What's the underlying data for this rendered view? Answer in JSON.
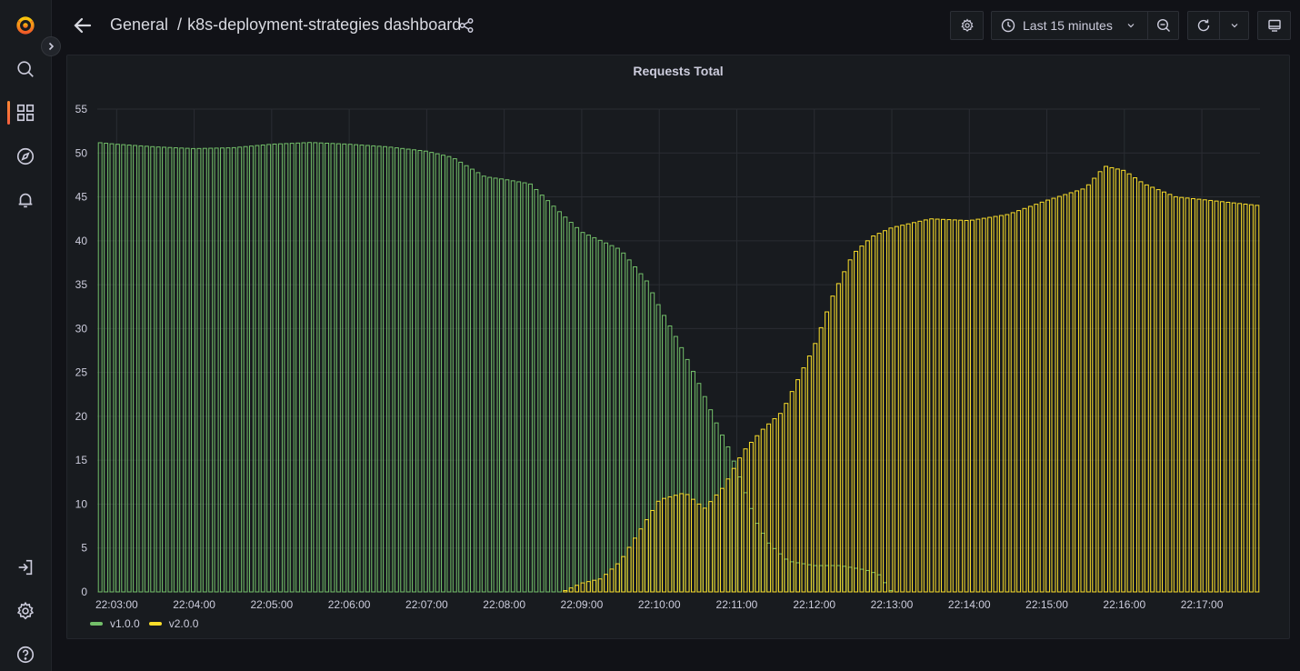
{
  "breadcrumb": {
    "folder": "General",
    "separator": "/",
    "dashboard": "k8s-deployment-strategies dashboard"
  },
  "icons": {
    "logo": "grafana-logo-icon",
    "search": "search-icon",
    "dashboards": "dashboards-grid-icon",
    "explore": "compass-icon",
    "alerting": "bell-icon",
    "signin": "sign-in-icon",
    "config": "gear-icon",
    "help": "help-icon"
  },
  "toolbar": {
    "time_range": "Last 15 minutes"
  },
  "colors": {
    "v1": "#73bf69",
    "v2": "#fade2a",
    "accent": "#f55f3e"
  },
  "panel": {
    "title": "Requests Total"
  },
  "chart_data": {
    "type": "bar",
    "title": "Requests Total",
    "xlabel": "",
    "ylabel": "",
    "ylim": [
      0,
      55
    ],
    "yticks": [
      0,
      5,
      10,
      15,
      20,
      25,
      30,
      35,
      40,
      45,
      50,
      55
    ],
    "xlim": [
      "22:02:45",
      "22:17:45"
    ],
    "xticks": [
      "22:03:00",
      "22:04:00",
      "22:05:00",
      "22:06:00",
      "22:07:00",
      "22:08:00",
      "22:09:00",
      "22:10:00",
      "22:11:00",
      "22:12:00",
      "22:13:00",
      "22:14:00",
      "22:15:00",
      "22:16:00",
      "22:17:00"
    ],
    "grid": true,
    "legend_position": "bottom-left",
    "series": [
      {
        "name": "v1.0.0",
        "color": "#73bf69",
        "points": [
          [
            "22:02:45",
            51.2
          ],
          [
            "22:03:00",
            51.0
          ],
          [
            "22:03:30",
            50.7
          ],
          [
            "22:04:00",
            50.5
          ],
          [
            "22:04:30",
            50.6
          ],
          [
            "22:05:00",
            51.0
          ],
          [
            "22:05:30",
            51.2
          ],
          [
            "22:06:00",
            51.0
          ],
          [
            "22:06:30",
            50.7
          ],
          [
            "22:07:00",
            50.2
          ],
          [
            "22:07:20",
            49.5
          ],
          [
            "22:07:45",
            47.3
          ],
          [
            "22:08:00",
            47.0
          ],
          [
            "22:08:20",
            46.5
          ],
          [
            "22:08:45",
            43.0
          ],
          [
            "22:09:00",
            41.0
          ],
          [
            "22:09:30",
            39.0
          ],
          [
            "22:09:50",
            35.5
          ],
          [
            "22:10:00",
            32.5
          ],
          [
            "22:10:15",
            28.5
          ],
          [
            "22:10:30",
            24.0
          ],
          [
            "22:10:45",
            19.0
          ],
          [
            "22:10:55",
            16.0
          ],
          [
            "22:11:05",
            12.0
          ],
          [
            "22:11:15",
            8.0
          ],
          [
            "22:11:25",
            5.5
          ],
          [
            "22:11:40",
            3.5
          ],
          [
            "22:12:00",
            3.0
          ],
          [
            "22:12:20",
            3.0
          ],
          [
            "22:12:40",
            2.5
          ],
          [
            "22:12:50",
            2.0
          ],
          [
            "22:13:00",
            0.0
          ],
          [
            "22:17:45",
            0.0
          ]
        ]
      },
      {
        "name": "v2.0.0",
        "color": "#fade2a",
        "points": [
          [
            "22:02:45",
            0.0
          ],
          [
            "22:08:45",
            0.0
          ],
          [
            "22:09:00",
            1.0
          ],
          [
            "22:09:15",
            1.5
          ],
          [
            "22:09:30",
            3.5
          ],
          [
            "22:09:45",
            7.0
          ],
          [
            "22:10:00",
            10.5
          ],
          [
            "22:10:20",
            11.3
          ],
          [
            "22:10:35",
            9.5
          ],
          [
            "22:10:50",
            12.0
          ],
          [
            "22:11:05",
            16.0
          ],
          [
            "22:11:20",
            18.5
          ],
          [
            "22:11:35",
            20.5
          ],
          [
            "22:11:50",
            25.0
          ],
          [
            "22:12:00",
            28.0
          ],
          [
            "22:12:15",
            34.0
          ],
          [
            "22:12:30",
            38.5
          ],
          [
            "22:12:45",
            40.5
          ],
          [
            "22:13:00",
            41.5
          ],
          [
            "22:13:30",
            42.5
          ],
          [
            "22:14:00",
            42.3
          ],
          [
            "22:14:30",
            43.0
          ],
          [
            "22:15:00",
            44.6
          ],
          [
            "22:15:30",
            46.0
          ],
          [
            "22:15:45",
            48.5
          ],
          [
            "22:16:00",
            48.0
          ],
          [
            "22:16:15",
            46.5
          ],
          [
            "22:16:40",
            45.0
          ],
          [
            "22:17:00",
            44.7
          ],
          [
            "22:17:45",
            44.0
          ]
        ]
      }
    ]
  }
}
